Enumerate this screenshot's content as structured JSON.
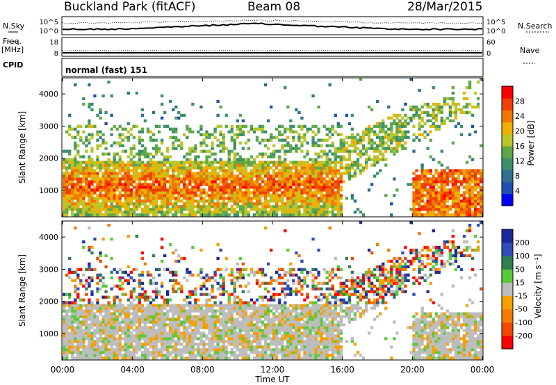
{
  "header": {
    "title": "Buckland Park (fitACF)",
    "beam": "Beam 08",
    "date": "28/Mar/2015"
  },
  "top_panels": {
    "nsky_label": "N.Sky",
    "nsky_ticks": [
      "10^5",
      "10^0"
    ],
    "nsearch_label": "N.Search",
    "nsearch_ticks": [
      "10^5",
      "10^0"
    ],
    "freq_label": "Freq.",
    "freq_unit": "[MHz]",
    "freq_ticks": [
      "18",
      "8"
    ],
    "nave_label": "Nave",
    "nave_ticks": [
      "60",
      "0"
    ],
    "cpid_label": "CPID",
    "cpid_value": "normal (fast) 151"
  },
  "colors": {
    "power_scale": [
      "#0000ff",
      "#1f4fb0",
      "#2f6f8f",
      "#3c8f6b",
      "#5fa84a",
      "#b8c62a",
      "#f0b000",
      "#f07800",
      "#ef3f00",
      "#ff0000"
    ],
    "velocity_scale": [
      "#1a2a9a",
      "#2f4db8",
      "#2f7f50",
      "#5ac93c",
      "#bdbdbd",
      "#f5a000",
      "#f57a00",
      "#ef4a00",
      "#ff0000"
    ]
  },
  "chart_data": [
    {
      "type": "heatmap",
      "name": "power",
      "ylabel": "Slant Range [km]",
      "yticks": [
        1000,
        2000,
        3000,
        4000
      ],
      "ylim": [
        180,
        4500
      ],
      "xlim": [
        0,
        24
      ],
      "colorbar_label": "Power [dB]",
      "colorbar_ticks": [
        4,
        8,
        12,
        16,
        20,
        24,
        28
      ],
      "colorbar_range": [
        0,
        32
      ],
      "legend_position": "right"
    },
    {
      "type": "heatmap",
      "name": "velocity",
      "ylabel": "Slant Range [km]",
      "yticks": [
        1000,
        2000,
        3000,
        4000
      ],
      "ylim": [
        180,
        4500
      ],
      "xlim": [
        0,
        24
      ],
      "xlabel": "Time UT",
      "xticks": [
        "00:00",
        "04:00",
        "08:00",
        "12:00",
        "16:00",
        "20:00",
        "00:00"
      ],
      "colorbar_label": "Velocity [m s⁻¹]",
      "colorbar_ticks": [
        200,
        100,
        50,
        15,
        -15,
        -50,
        -100,
        -200
      ],
      "legend_position": "right"
    }
  ]
}
